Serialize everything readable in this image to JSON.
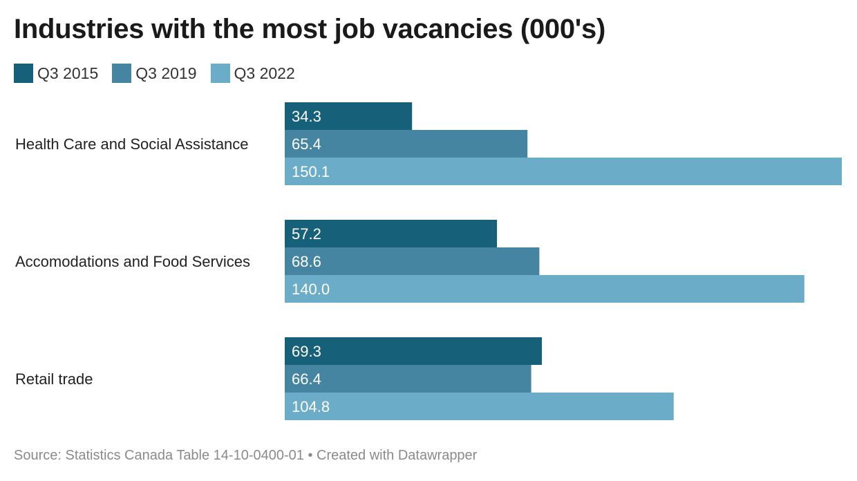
{
  "chart_data": {
    "type": "bar",
    "orientation": "horizontal",
    "title": "Industries with the most job vacancies (000's)",
    "categories": [
      "Health Care and Social Assistance",
      "Accomodations and Food Services",
      "Retail trade"
    ],
    "series": [
      {
        "name": "Q3 2015",
        "color": "#17607a",
        "values": [
          34.3,
          57.2,
          69.3
        ],
        "labels": [
          "34.3",
          "57.2",
          "69.3"
        ]
      },
      {
        "name": "Q3 2019",
        "color": "#4585a2",
        "values": [
          65.4,
          68.6,
          66.4
        ],
        "labels": [
          "65.4",
          "68.6",
          "66.4"
        ]
      },
      {
        "name": "Q3 2022",
        "color": "#6badc9",
        "values": [
          150.1,
          140.0,
          104.8
        ],
        "labels": [
          "150.1",
          "140.0",
          "104.8"
        ]
      }
    ],
    "xlim": [
      0,
      150.1
    ],
    "legend_position": "top-left",
    "grid": false
  },
  "footer": {
    "text": "Source: Statistics Canada Table 14-10-0400-01 • Created with Datawrapper"
  }
}
